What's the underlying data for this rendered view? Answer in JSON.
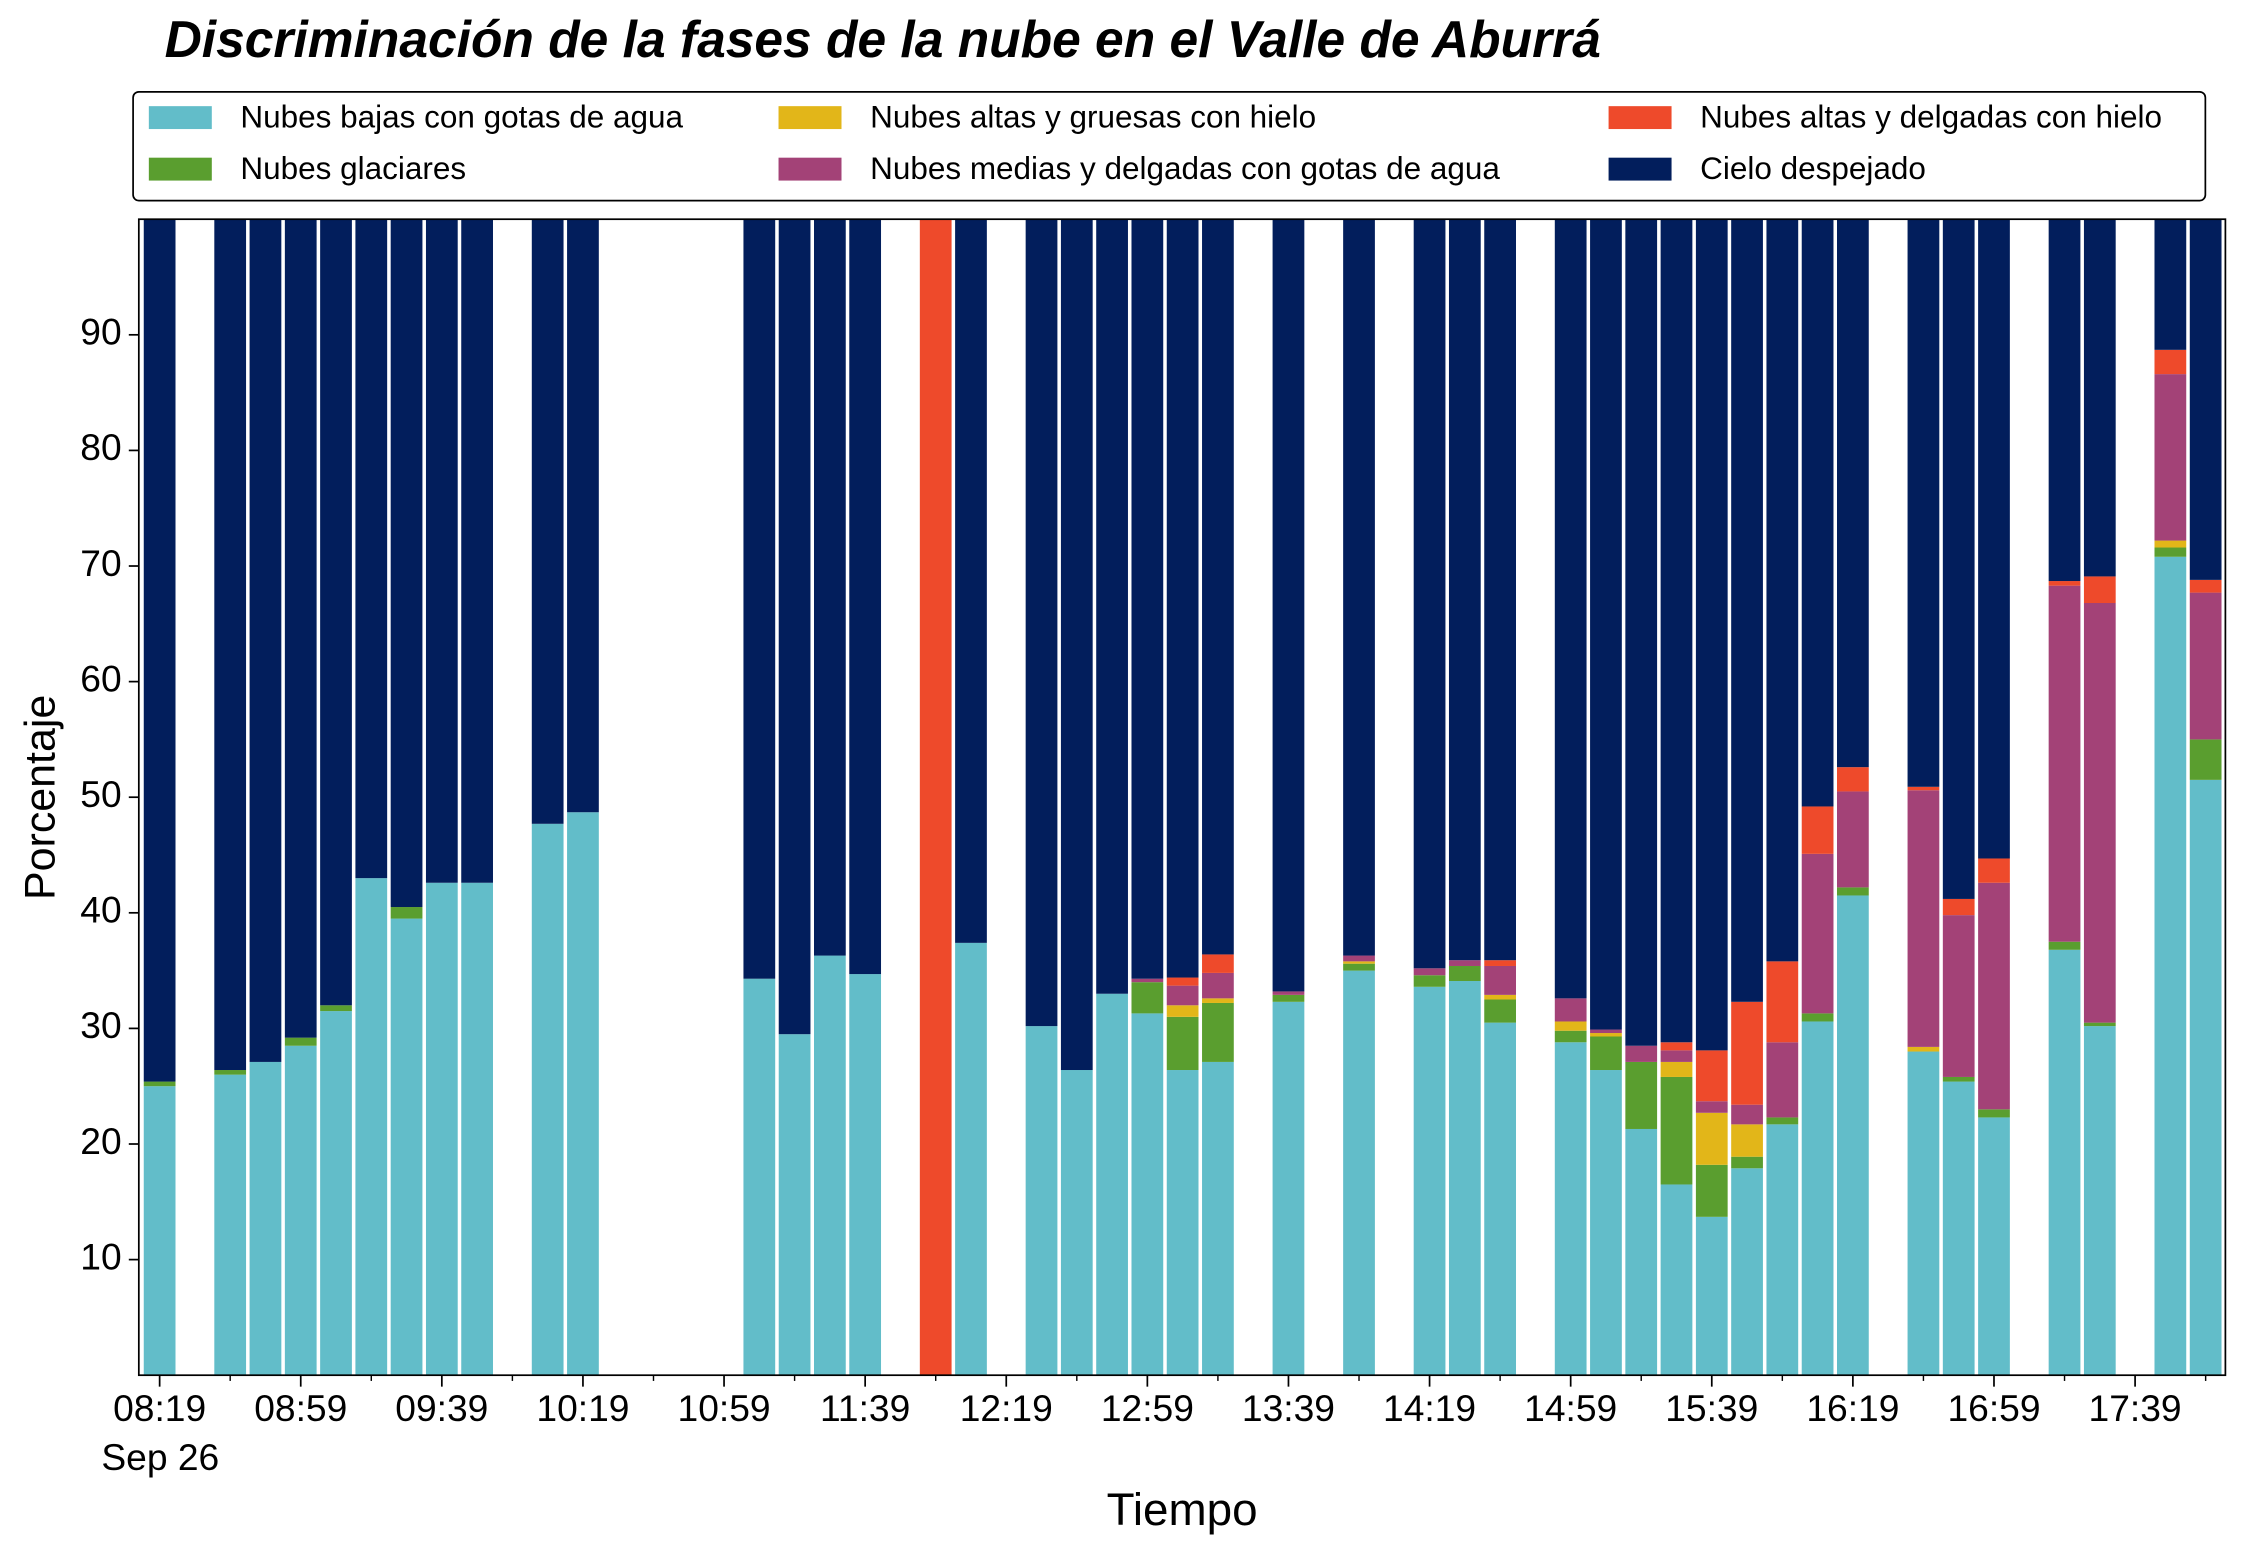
{
  "chart_data": {
    "type": "stacked_bar",
    "title": "Discriminación de la fases de la nube en el Valle de Aburrá",
    "xlabel": "Tiempo",
    "ylabel": "Porcentaje",
    "x_date_label": "Sep 26",
    "categories": [
      "08:19",
      null,
      null,
      null,
      "08:59",
      null,
      null,
      null,
      "09:39",
      null,
      null,
      null,
      "10:19",
      null,
      null,
      null,
      "10:59",
      null,
      null,
      null,
      "11:39",
      null,
      null,
      null,
      "12:19",
      null,
      null,
      null,
      "12:59",
      null,
      null,
      null,
      "13:39",
      null,
      null,
      null,
      "14:19",
      null,
      null,
      null,
      "14:59",
      null,
      null,
      null,
      "15:39",
      null,
      null,
      null,
      "16:19",
      null,
      null,
      null,
      "16:59",
      null,
      null,
      null,
      "17:39",
      null,
      null
    ],
    "ylim": [
      0,
      100
    ],
    "yticks": [
      10,
      20,
      30,
      40,
      50,
      60,
      70,
      80,
      90
    ],
    "legend": "top",
    "series": [
      {
        "name": "Nubes bajas con gotas de agua",
        "color": "#62bdc9",
        "values": [
          25,
          null,
          26,
          27.1,
          28.5,
          31.5,
          43,
          39.5,
          42.6,
          42.6,
          null,
          47.7,
          48.7,
          null,
          null,
          null,
          null,
          34.3,
          29.5,
          36.3,
          34.7,
          null,
          0,
          37.4,
          null,
          30.2,
          26.4,
          33,
          31.3,
          26.4,
          27.1,
          null,
          32.3,
          null,
          35,
          null,
          33.6,
          34.1,
          30.5,
          null,
          28.8,
          26.4,
          21.3,
          16.5,
          13.7,
          17.9,
          21.7,
          30.6,
          41.5,
          null,
          28,
          25.4,
          22.3,
          null,
          36.8,
          30.2,
          null,
          70.8,
          51.5
        ]
      },
      {
        "name": "Nubes glaciares",
        "color": "#5a9e2f",
        "values": [
          0.4,
          null,
          0.4,
          0,
          0.7,
          0.5,
          0,
          1,
          0,
          0,
          null,
          0,
          0,
          null,
          null,
          null,
          null,
          0,
          0,
          0,
          0,
          null,
          0,
          0,
          null,
          0,
          0,
          0,
          2.7,
          4.6,
          5.1,
          null,
          0.6,
          null,
          0.6,
          null,
          1,
          1.3,
          2,
          null,
          1,
          2.9,
          5.8,
          9.3,
          4.5,
          1,
          0.6,
          0.7,
          0.7,
          null,
          0,
          0.4,
          0.7,
          null,
          0.7,
          0.3,
          null,
          0.8,
          3.5
        ]
      },
      {
        "name": "Nubes altas y gruesas con hielo",
        "color": "#e2b619",
        "values": [
          0,
          null,
          0,
          0,
          0,
          0,
          0,
          0,
          0,
          0,
          null,
          0,
          0,
          null,
          null,
          null,
          null,
          0,
          0,
          0,
          0,
          null,
          0,
          0,
          null,
          0,
          0,
          0,
          0,
          1,
          0.4,
          null,
          0,
          null,
          0.2,
          null,
          0,
          0,
          0.4,
          null,
          0.8,
          0.3,
          0,
          1.3,
          4.5,
          2.8,
          0,
          0,
          0,
          null,
          0.4,
          0,
          0,
          null,
          0,
          0,
          null,
          0.6,
          0
        ]
      },
      {
        "name": "Nubes medias y delgadas con gotas de agua",
        "color": "#a34277",
        "values": [
          0,
          null,
          0,
          0,
          0,
          0,
          0,
          0,
          0,
          0,
          null,
          0,
          0,
          null,
          null,
          null,
          null,
          0,
          0,
          0,
          0,
          null,
          0,
          0,
          null,
          0,
          0,
          0,
          0.3,
          1.7,
          2.2,
          null,
          0.3,
          null,
          0.5,
          null,
          0.6,
          0.5,
          2.5,
          null,
          2,
          0.3,
          1.4,
          1,
          1,
          1.7,
          6.5,
          13.8,
          8.3,
          null,
          22.2,
          14,
          19.6,
          null,
          30.8,
          36.3,
          null,
          14.4,
          12.7
        ]
      },
      {
        "name": "Nubes altas y delgadas con hielo",
        "color": "#ee4a2b",
        "values": [
          0,
          null,
          0,
          0,
          0,
          0,
          0,
          0,
          0,
          0,
          null,
          0,
          0,
          null,
          null,
          null,
          null,
          0,
          0,
          0,
          0,
          null,
          100,
          0,
          null,
          0,
          0,
          0,
          0,
          0.7,
          1.6,
          null,
          0,
          null,
          0,
          null,
          0,
          0,
          0.5,
          null,
          0,
          0,
          0,
          0.7,
          4.4,
          8.9,
          7,
          4.1,
          2.1,
          null,
          0.3,
          1.4,
          2.1,
          null,
          0.4,
          2.3,
          null,
          2.1,
          1.1
        ]
      },
      {
        "name": "Cielo despejado",
        "color": "#021e5c",
        "values": [
          74.6,
          null,
          73.6,
          72.9,
          70.8,
          68,
          57,
          59.5,
          57.4,
          57.4,
          null,
          52.3,
          51.3,
          null,
          null,
          null,
          null,
          65.7,
          70.5,
          63.7,
          65.3,
          null,
          0,
          62.6,
          null,
          69.8,
          73.6,
          67,
          65.7,
          65.6,
          63.6,
          null,
          66.8,
          null,
          63.7,
          null,
          64.8,
          64.1,
          64.1,
          null,
          67.4,
          70.1,
          71.5,
          71.2,
          71.9,
          67.7,
          64.2,
          50.8,
          47.4,
          null,
          49.1,
          58.8,
          55.3,
          null,
          31.3,
          30.9,
          null,
          11.3,
          31.2
        ]
      }
    ]
  }
}
